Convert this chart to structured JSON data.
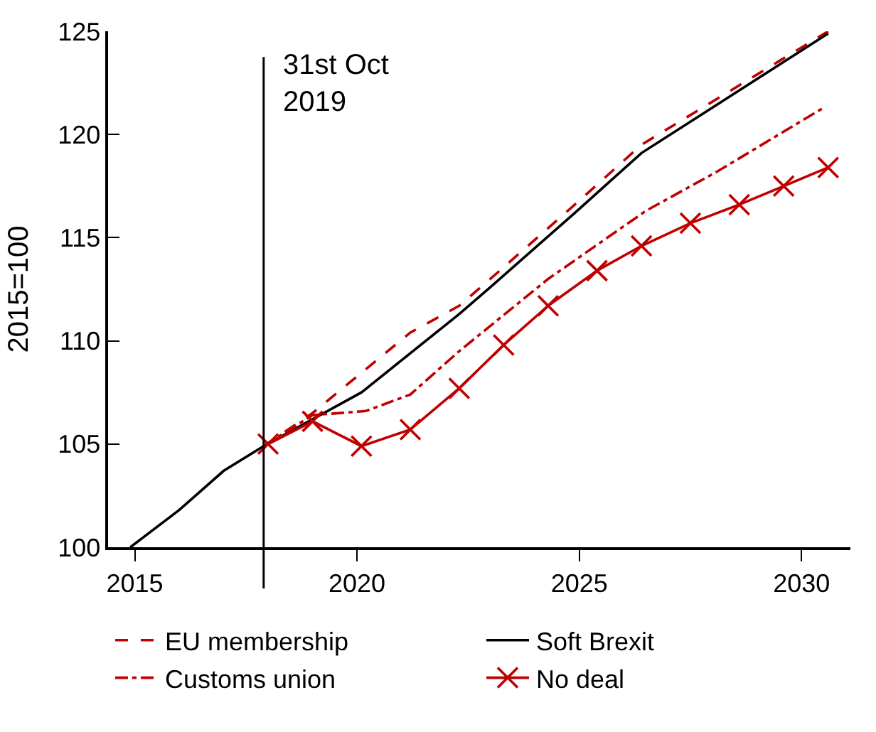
{
  "chart_data": {
    "type": "line",
    "ylabel": "2015=100",
    "xlim": [
      2014.4,
      2031.1
    ],
    "xticks": [
      2015,
      2020,
      2025,
      2030
    ],
    "ylim": [
      100,
      125
    ],
    "yticks": [
      100,
      105,
      110,
      115,
      120,
      125
    ],
    "legend": "bottom",
    "ref_lines": [
      {
        "axis": "x",
        "value": 2017.9,
        "label": "31st Oct\n2019",
        "color": "#000000"
      }
    ],
    "series": [
      {
        "name": "EU membership",
        "color": "#c00000",
        "line_style": "dashed",
        "marker": "none",
        "x": [
          2017.9,
          2019.0,
          2021.2,
          2022.3,
          2023.0,
          2024.9,
          2026.4,
          2030.6
        ],
        "values": [
          104.9,
          106.5,
          110.4,
          111.7,
          113.0,
          116.6,
          119.5,
          125.0
        ]
      },
      {
        "name": "Soft Brexit",
        "color": "#000000",
        "line_style": "solid",
        "marker": "none",
        "x": [
          2014.9,
          2016.0,
          2017.0,
          2017.9,
          2020.1,
          2022.3,
          2023.0,
          2024.9,
          2026.4,
          2030.6
        ],
        "values": [
          100.0,
          101.8,
          103.7,
          104.9,
          107.5,
          111.3,
          112.6,
          116.2,
          119.1,
          124.9
        ]
      },
      {
        "name": "Customs union",
        "color": "#c00000",
        "line_style": "dashdot",
        "marker": "none",
        "x": [
          2017.9,
          2019.0,
          2020.2,
          2021.2,
          2022.3,
          2024.3,
          2026.5,
          2028.1,
          2030.5
        ],
        "values": [
          104.9,
          106.4,
          106.6,
          107.4,
          109.5,
          113.0,
          116.3,
          118.2,
          121.3
        ]
      },
      {
        "name": "No deal",
        "color": "#c00000",
        "line_style": "solid",
        "marker": "cross",
        "x": [
          2018.0,
          2019.0,
          2020.1,
          2021.2,
          2022.3,
          2023.3,
          2024.3,
          2025.4,
          2026.4,
          2027.5,
          2028.6,
          2029.6,
          2030.6
        ],
        "values": [
          105.0,
          106.1,
          104.9,
          105.7,
          107.7,
          109.8,
          111.7,
          113.4,
          114.6,
          115.7,
          116.6,
          117.5,
          118.4
        ]
      }
    ]
  }
}
